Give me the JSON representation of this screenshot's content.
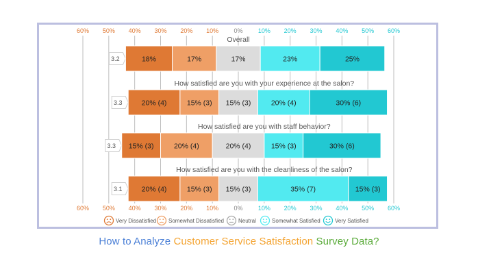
{
  "chart_data": {
    "type": "diverging-stacked-bar",
    "axis_ticks": [
      "60%",
      "50%",
      "40%",
      "30%",
      "20%",
      "10%",
      "0%",
      "10%",
      "20%",
      "30%",
      "40%",
      "50%",
      "60%"
    ],
    "xlim": [
      -60,
      60
    ],
    "categories": [
      "Very Dissatisfied",
      "Somewhat Dissatisfied",
      "Neutral",
      "Somewhat Satisfied",
      "Very Satisfied"
    ],
    "colors": [
      "#df7934",
      "#ef9f66",
      "#dcdcdc",
      "#52eaf0",
      "#22c8d2"
    ],
    "questions": [
      {
        "title": "Overall",
        "score": "3.2",
        "values": [
          18,
          17,
          17,
          23,
          25
        ],
        "labels": [
          "18%",
          "17%",
          "17%",
          "23%",
          "25%"
        ]
      },
      {
        "title": "How satisfied are you with your experience at the salon?",
        "score": "3.3",
        "values": [
          20,
          15,
          15,
          20,
          30
        ],
        "labels": [
          "20% (4)",
          "15% (3)",
          "15% (3)",
          "20% (4)",
          "30% (6)"
        ]
      },
      {
        "title": "How satisfied are you with staff behavior?",
        "score": "3.3",
        "values": [
          15,
          20,
          20,
          15,
          30
        ],
        "labels": [
          "15% (3)",
          "20% (4)",
          "20% (4)",
          "15% (3)",
          "30% (6)"
        ]
      },
      {
        "title": "How satisfied are you with the cleanliness of the salon?",
        "score": "3.1",
        "values": [
          20,
          15,
          15,
          35,
          15
        ],
        "labels": [
          "20% (4)",
          "15% (3)",
          "15% (3)",
          "35% (7)",
          "15% (3)"
        ]
      }
    ],
    "legend": [
      {
        "label": "Very Dissatisfied",
        "icon": "very-dissatisfied-face-icon"
      },
      {
        "label": "Somewhat Dissatisfied",
        "icon": "somewhat-dissatisfied-face-icon"
      },
      {
        "label": "Neutral",
        "icon": "neutral-face-icon"
      },
      {
        "label": "Somewhat Satisfied",
        "icon": "somewhat-satisfied-face-icon"
      },
      {
        "label": "Very Satisfied",
        "icon": "very-satisfied-face-icon"
      }
    ]
  },
  "caption": {
    "part1": "How to Analyze ",
    "part2": "Customer Service Satisfaction ",
    "part3": "Survey Data?",
    "colors": [
      "#4a7fd6",
      "#f4a432",
      "#5aab3a"
    ]
  }
}
